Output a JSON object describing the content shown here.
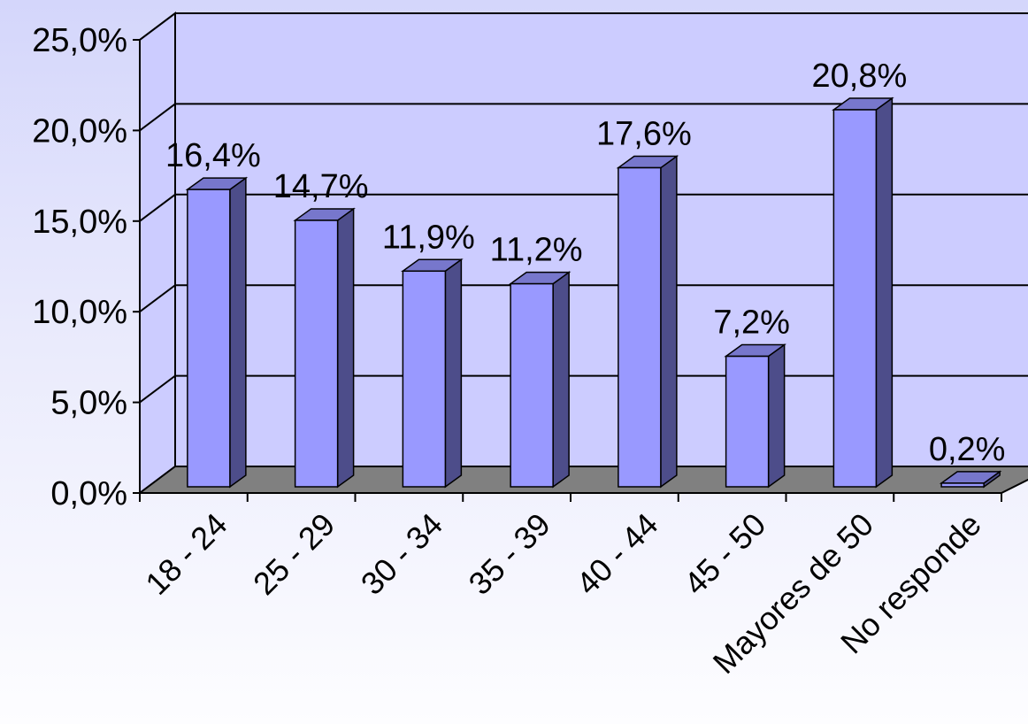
{
  "chart_data": {
    "type": "bar",
    "title": "",
    "xlabel": "",
    "ylabel": "",
    "categories": [
      "18 - 24",
      "25 - 29",
      "30 - 34",
      "35 - 39",
      "40 - 44",
      "45 - 50",
      "Mayores de 50",
      "No responde"
    ],
    "values": [
      16.4,
      14.7,
      11.9,
      11.2,
      17.6,
      7.2,
      20.8,
      0.2
    ],
    "value_labels": [
      "16,4%",
      "14,7%",
      "11,9%",
      "11,2%",
      "17,6%",
      "7,2%",
      "20,8%",
      "0,2%"
    ],
    "yticks": [
      0,
      5,
      10,
      15,
      20,
      25
    ],
    "ytick_labels": [
      "0,0%",
      "5,0%",
      "10,0%",
      "15,0%",
      "20,0%",
      "25,0%"
    ],
    "ylim": [
      0,
      25
    ],
    "grid": true,
    "style": "3d-column",
    "colors": {
      "bar_front": "#9999ff",
      "bar_side": "#4d4d8a",
      "bar_top": "#7777cc",
      "floor": "#808080",
      "wall": "#ccccff"
    }
  }
}
